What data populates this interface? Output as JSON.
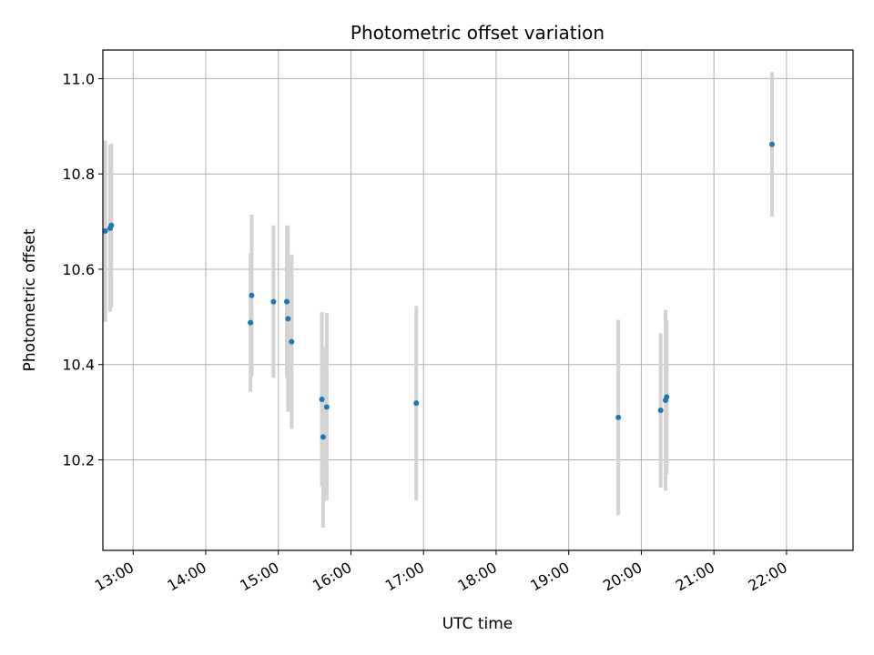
{
  "chart_data": {
    "type": "scatter",
    "title": "Photometric offset variation",
    "xlabel": "UTC time",
    "ylabel": "Photometric offset",
    "xlim": [
      "12:35",
      "22:55"
    ],
    "ylim": [
      10.01,
      11.06
    ],
    "x_ticks": [
      "13:00",
      "14:00",
      "15:00",
      "16:00",
      "17:00",
      "18:00",
      "19:00",
      "20:00",
      "21:00",
      "22:00"
    ],
    "y_ticks": [
      10.2,
      10.4,
      10.6,
      10.8,
      11.0
    ],
    "y_tick_labels": [
      "10.2",
      "10.4",
      "10.6",
      "10.8",
      "11.0"
    ],
    "grid": true,
    "marker_color": "#1f77b4",
    "errorbar_color": "#d3d3d3",
    "points": [
      {
        "time": "12:37",
        "y": 10.68,
        "err": 0.19
      },
      {
        "time": "12:41",
        "y": 10.686,
        "err": 0.175
      },
      {
        "time": "12:42",
        "y": 10.692,
        "err": 0.172
      },
      {
        "time": "14:37",
        "y": 10.488,
        "err": 0.145
      },
      {
        "time": "14:38",
        "y": 10.545,
        "err": 0.17
      },
      {
        "time": "14:56",
        "y": 10.532,
        "err": 0.16
      },
      {
        "time": "15:07",
        "y": 10.532,
        "err": 0.16
      },
      {
        "time": "15:08",
        "y": 10.496,
        "err": 0.195
      },
      {
        "time": "15:11",
        "y": 10.448,
        "err": 0.183
      },
      {
        "time": "15:36",
        "y": 10.327,
        "err": 0.183
      },
      {
        "time": "15:37",
        "y": 10.248,
        "err": 0.19
      },
      {
        "time": "15:40",
        "y": 10.311,
        "err": 0.197
      },
      {
        "time": "16:54",
        "y": 10.319,
        "err": 0.204
      },
      {
        "time": "19:41",
        "y": 10.289,
        "err": 0.205
      },
      {
        "time": "20:16",
        "y": 10.304,
        "err": 0.162
      },
      {
        "time": "20:20",
        "y": 10.325,
        "err": 0.19
      },
      {
        "time": "20:21",
        "y": 10.332,
        "err": 0.162
      },
      {
        "time": "21:48",
        "y": 10.862,
        "err": 0.152
      }
    ]
  }
}
